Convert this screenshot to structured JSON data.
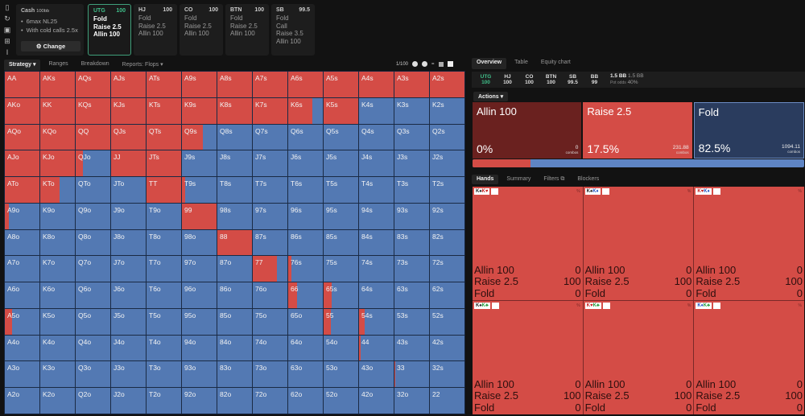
{
  "sidebar_icons": [
    "book-icon",
    "refresh-icon",
    "save-icon",
    "gamepad-icon",
    "text-cursor-icon"
  ],
  "config": {
    "title": "Cash",
    "stack": "100bb",
    "items": [
      "6max NL25",
      "With cold calls 2.5x"
    ],
    "change_label": "Change"
  },
  "positions": [
    {
      "name": "UTG",
      "stack": "100",
      "actions": [
        "Fold",
        "Raise 2.5",
        "Allin 100"
      ],
      "active": true
    },
    {
      "name": "HJ",
      "stack": "100",
      "actions": [
        "Fold",
        "Raise 2.5",
        "Allin 100"
      ]
    },
    {
      "name": "CO",
      "stack": "100",
      "actions": [
        "Fold",
        "Raise 2.5",
        "Allin 100"
      ]
    },
    {
      "name": "BTN",
      "stack": "100",
      "actions": [
        "Fold",
        "Raise 2.5",
        "Allin 100"
      ]
    },
    {
      "name": "SB",
      "stack": "99.5",
      "actions": [
        "Fold",
        "Call",
        "Raise 3.5",
        "Allin 100"
      ]
    }
  ],
  "strategy_tabs": [
    "Strategy",
    "Ranges",
    "Breakdown",
    "Reports: Flops"
  ],
  "toolbar": {
    "ratio": "1/100"
  },
  "colors": {
    "raise": "#d44c46",
    "fold": "#5379b3",
    "allin": "#6a211f",
    "accent": "#3fbf8a"
  },
  "grid": [
    [
      [
        "AA",
        100
      ],
      [
        "AKs",
        100
      ],
      [
        "AQs",
        100
      ],
      [
        "AJs",
        100
      ],
      [
        "ATs",
        100
      ],
      [
        "A9s",
        100
      ],
      [
        "A8s",
        100
      ],
      [
        "A7s",
        100
      ],
      [
        "A6s",
        100
      ],
      [
        "A5s",
        100
      ],
      [
        "A4s",
        100
      ],
      [
        "A3s",
        100
      ],
      [
        "A2s",
        100
      ]
    ],
    [
      [
        "AKo",
        100
      ],
      [
        "KK",
        100
      ],
      [
        "KQs",
        100
      ],
      [
        "KJs",
        100
      ],
      [
        "KTs",
        100
      ],
      [
        "K9s",
        100
      ],
      [
        "K8s",
        100
      ],
      [
        "K7s",
        100
      ],
      [
        "K6s",
        70
      ],
      [
        "K5s",
        100
      ],
      [
        "K4s",
        0
      ],
      [
        "K3s",
        0
      ],
      [
        "K2s",
        0
      ]
    ],
    [
      [
        "AQo",
        100
      ],
      [
        "KQo",
        100
      ],
      [
        "QQ",
        100
      ],
      [
        "QJs",
        100
      ],
      [
        "QTs",
        100
      ],
      [
        "Q9s",
        60
      ],
      [
        "Q8s",
        0
      ],
      [
        "Q7s",
        0
      ],
      [
        "Q6s",
        0
      ],
      [
        "Q5s",
        0
      ],
      [
        "Q4s",
        0
      ],
      [
        "Q3s",
        0
      ],
      [
        "Q2s",
        0
      ]
    ],
    [
      [
        "AJo",
        100
      ],
      [
        "KJo",
        100
      ],
      [
        "QJo",
        22
      ],
      [
        "JJ",
        100
      ],
      [
        "JTs",
        100
      ],
      [
        "J9s",
        0
      ],
      [
        "J8s",
        0
      ],
      [
        "J7s",
        0
      ],
      [
        "J6s",
        0
      ],
      [
        "J5s",
        0
      ],
      [
        "J4s",
        0
      ],
      [
        "J3s",
        0
      ],
      [
        "J2s",
        0
      ]
    ],
    [
      [
        "ATo",
        100
      ],
      [
        "KTo",
        56
      ],
      [
        "QTo",
        0
      ],
      [
        "JTo",
        0
      ],
      [
        "TT",
        100
      ],
      [
        "T9s",
        10
      ],
      [
        "T8s",
        0
      ],
      [
        "T7s",
        0
      ],
      [
        "T6s",
        0
      ],
      [
        "T5s",
        0
      ],
      [
        "T4s",
        0
      ],
      [
        "T3s",
        0
      ],
      [
        "T2s",
        0
      ]
    ],
    [
      [
        "A9o",
        12
      ],
      [
        "K9o",
        0
      ],
      [
        "Q9o",
        0
      ],
      [
        "J9o",
        0
      ],
      [
        "T9o",
        0
      ],
      [
        "99",
        100
      ],
      [
        "98s",
        0
      ],
      [
        "97s",
        0
      ],
      [
        "96s",
        0
      ],
      [
        "95s",
        0
      ],
      [
        "94s",
        0
      ],
      [
        "93s",
        0
      ],
      [
        "92s",
        0
      ]
    ],
    [
      [
        "A8o",
        0
      ],
      [
        "K8o",
        0
      ],
      [
        "Q8o",
        0
      ],
      [
        "J8o",
        0
      ],
      [
        "T8o",
        0
      ],
      [
        "98o",
        0
      ],
      [
        "88",
        100
      ],
      [
        "87s",
        0
      ],
      [
        "86s",
        0
      ],
      [
        "85s",
        0
      ],
      [
        "84s",
        0
      ],
      [
        "83s",
        0
      ],
      [
        "82s",
        0
      ]
    ],
    [
      [
        "A7o",
        0
      ],
      [
        "K7o",
        0
      ],
      [
        "Q7o",
        0
      ],
      [
        "J7o",
        0
      ],
      [
        "T7o",
        0
      ],
      [
        "97o",
        0
      ],
      [
        "87o",
        0
      ],
      [
        "77",
        70
      ],
      [
        "76s",
        10
      ],
      [
        "75s",
        0
      ],
      [
        "74s",
        0
      ],
      [
        "73s",
        0
      ],
      [
        "72s",
        0
      ]
    ],
    [
      [
        "A6o",
        0
      ],
      [
        "K6o",
        0
      ],
      [
        "Q6o",
        0
      ],
      [
        "J6o",
        0
      ],
      [
        "T6o",
        0
      ],
      [
        "96o",
        0
      ],
      [
        "86o",
        0
      ],
      [
        "76o",
        0
      ],
      [
        "66",
        25
      ],
      [
        "65s",
        23
      ],
      [
        "64s",
        0
      ],
      [
        "63s",
        0
      ],
      [
        "62s",
        0
      ]
    ],
    [
      [
        "A5o",
        20
      ],
      [
        "K5o",
        0
      ],
      [
        "Q5o",
        0
      ],
      [
        "J5o",
        0
      ],
      [
        "T5o",
        0
      ],
      [
        "95o",
        0
      ],
      [
        "85o",
        0
      ],
      [
        "75o",
        0
      ],
      [
        "65o",
        0
      ],
      [
        "55",
        20
      ],
      [
        "54s",
        16
      ],
      [
        "53s",
        0
      ],
      [
        "52s",
        0
      ]
    ],
    [
      [
        "A4o",
        0
      ],
      [
        "K4o",
        0
      ],
      [
        "Q4o",
        0
      ],
      [
        "J4o",
        0
      ],
      [
        "T4o",
        0
      ],
      [
        "94o",
        0
      ],
      [
        "84o",
        0
      ],
      [
        "74o",
        0
      ],
      [
        "64o",
        0
      ],
      [
        "54o",
        0
      ],
      [
        "44",
        5
      ],
      [
        "43s",
        0
      ],
      [
        "42s",
        0
      ]
    ],
    [
      [
        "A3o",
        0
      ],
      [
        "K3o",
        0
      ],
      [
        "Q3o",
        0
      ],
      [
        "J3o",
        0
      ],
      [
        "T3o",
        0
      ],
      [
        "93o",
        0
      ],
      [
        "83o",
        0
      ],
      [
        "73o",
        0
      ],
      [
        "63o",
        0
      ],
      [
        "53o",
        0
      ],
      [
        "43o",
        0
      ],
      [
        "33",
        1
      ],
      [
        "32s",
        0
      ]
    ],
    [
      [
        "A2o",
        0
      ],
      [
        "K2o",
        0
      ],
      [
        "Q2o",
        0
      ],
      [
        "J2o",
        0
      ],
      [
        "T2o",
        0
      ],
      [
        "92o",
        0
      ],
      [
        "82o",
        0
      ],
      [
        "72o",
        0
      ],
      [
        "62o",
        0
      ],
      [
        "52o",
        0
      ],
      [
        "42o",
        0
      ],
      [
        "32o",
        0
      ],
      [
        "22",
        0
      ]
    ]
  ],
  "right_tabs": [
    "Overview",
    "Table",
    "Equity chart"
  ],
  "seats": [
    {
      "name": "UTG",
      "stack": "100",
      "active": true
    },
    {
      "name": "HJ",
      "stack": "100"
    },
    {
      "name": "CO",
      "stack": "100"
    },
    {
      "name": "BTN",
      "stack": "100"
    },
    {
      "name": "SB",
      "stack": "99.5"
    },
    {
      "name": "BB",
      "stack": "99"
    }
  ],
  "pot": {
    "value": "1.5 BB",
    "value2": "1.5 BB",
    "odds_label": "Pot odds",
    "odds": "40%"
  },
  "actions_label": "Actions",
  "actions": [
    {
      "name": "Allin 100",
      "pct": "0%",
      "combos": "0",
      "combos_label": "combos",
      "kind": "allin"
    },
    {
      "name": "Raise 2.5",
      "pct": "17.5%",
      "combos": "231.88",
      "combos_label": "combos",
      "kind": "raise"
    },
    {
      "name": "Fold",
      "pct": "82.5%",
      "combos": "1094.11",
      "combos_label": "combos",
      "kind": "fold"
    }
  ],
  "freq_bar": {
    "raise_pct": 17.5,
    "fold_pct": 82.5
  },
  "hand_tabs": [
    "Hands",
    "Summary",
    "Filters",
    "Blockers"
  ],
  "hand_cells": [
    {
      "c1": "K♠",
      "c2": "K♥",
      "s1": "k",
      "s2": "r"
    },
    {
      "c1": "K♠",
      "c2": "K♦",
      "s1": "k",
      "s2": "b"
    },
    {
      "c1": "K♥",
      "c2": "K♦",
      "s1": "r",
      "s2": "b"
    },
    {
      "c1": "K♠",
      "c2": "K♣",
      "s1": "k",
      "s2": "g"
    },
    {
      "c1": "K♥",
      "c2": "K♣",
      "s1": "r",
      "s2": "g"
    },
    {
      "c1": "K♦",
      "c2": "K♣",
      "s1": "b",
      "s2": "g"
    }
  ],
  "hand_rows": [
    {
      "label": "Allin 100",
      "value": "0"
    },
    {
      "label": "Raise 2.5",
      "value": "100"
    },
    {
      "label": "Fold",
      "value": "0"
    }
  ],
  "pct_symbol": "%"
}
